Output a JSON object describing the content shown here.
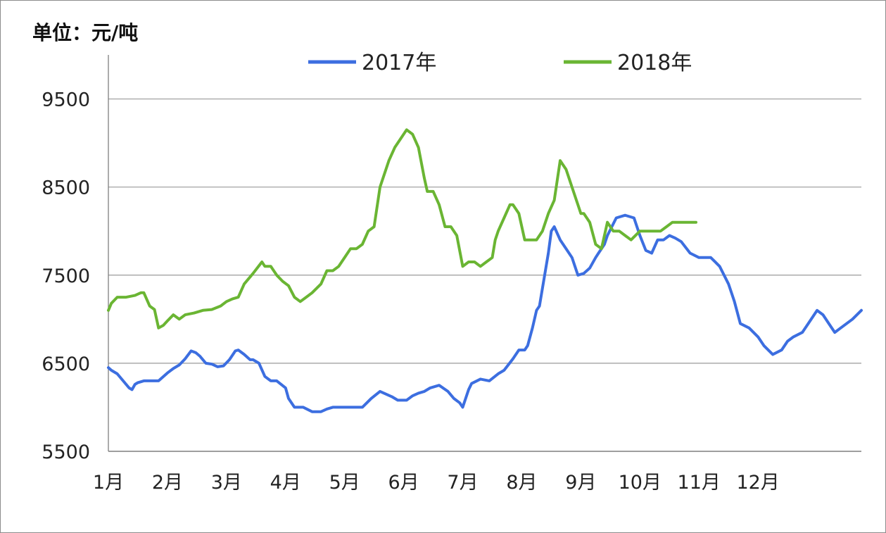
{
  "unit_label": "单位：元/吨",
  "chart_data": {
    "type": "line",
    "ylim": [
      5500,
      10000
    ],
    "yticks": [
      5500,
      6500,
      7500,
      8500,
      9500
    ],
    "xlim": [
      0,
      12.75
    ],
    "xtick_labels": [
      "1月",
      "2月",
      "3月",
      "4月",
      "5月",
      "6月",
      "7月",
      "8月",
      "9月",
      "10月",
      "11月",
      "12月"
    ],
    "grid": "horizontal",
    "legend_position": "top",
    "series": [
      {
        "name": "2017年",
        "color": "#3c6ee0",
        "x": [
          0.0,
          0.05,
          0.15,
          0.25,
          0.35,
          0.4,
          0.45,
          0.5,
          0.6,
          0.75,
          0.85,
          1.0,
          1.1,
          1.2,
          1.3,
          1.4,
          1.48,
          1.55,
          1.65,
          1.75,
          1.85,
          1.95,
          2.05,
          2.15,
          2.2,
          2.3,
          2.4,
          2.45,
          2.55,
          2.65,
          2.75,
          2.85,
          3.0,
          3.05,
          3.15,
          3.3,
          3.45,
          3.6,
          3.7,
          3.8,
          3.9,
          4.0,
          4.15,
          4.3,
          4.45,
          4.6,
          4.8,
          4.9,
          5.05,
          5.15,
          5.25,
          5.35,
          5.45,
          5.6,
          5.75,
          5.85,
          5.95,
          6.0,
          6.1,
          6.15,
          6.3,
          6.45,
          6.6,
          6.7,
          6.85,
          6.95,
          7.05,
          7.1,
          7.18,
          7.25,
          7.3,
          7.35,
          7.4,
          7.45,
          7.5,
          7.55,
          7.65,
          7.75,
          7.85,
          7.95,
          8.05,
          8.15,
          8.25,
          8.3,
          8.4,
          8.45,
          8.6,
          8.75,
          8.9,
          9.0,
          9.1,
          9.2,
          9.3,
          9.4,
          9.5,
          9.6,
          9.7,
          9.85,
          10.0,
          10.1,
          10.2,
          10.35,
          10.5,
          10.6,
          10.7,
          10.85,
          11.0,
          11.1,
          11.25,
          11.4,
          11.5,
          11.6,
          11.75,
          11.85,
          12.0,
          12.1,
          12.2,
          12.3,
          12.4,
          12.6,
          12.75
        ],
        "values": [
          6450,
          6420,
          6380,
          6300,
          6220,
          6200,
          6260,
          6280,
          6300,
          6300,
          6300,
          6390,
          6440,
          6480,
          6550,
          6640,
          6620,
          6580,
          6500,
          6490,
          6460,
          6470,
          6540,
          6640,
          6650,
          6600,
          6540,
          6540,
          6500,
          6350,
          6300,
          6300,
          6220,
          6100,
          6000,
          6000,
          5950,
          5950,
          5980,
          6000,
          6000,
          6000,
          6000,
          6000,
          6100,
          6180,
          6120,
          6080,
          6080,
          6130,
          6160,
          6180,
          6220,
          6250,
          6180,
          6100,
          6050,
          6000,
          6200,
          6270,
          6320,
          6300,
          6380,
          6420,
          6550,
          6650,
          6650,
          6700,
          6900,
          7100,
          7150,
          7350,
          7550,
          7750,
          8000,
          8050,
          7900,
          7800,
          7700,
          7500,
          7520,
          7580,
          7700,
          7750,
          7850,
          7950,
          8150,
          8180,
          8150,
          7950,
          7780,
          7750,
          7900,
          7900,
          7950,
          7920,
          7880,
          7750,
          7700,
          7700,
          7700,
          7600,
          7400,
          7200,
          6950,
          6900,
          6800,
          6700,
          6600,
          6650,
          6750,
          6800,
          6850,
          6950,
          7100,
          7050,
          6950,
          6850,
          6900,
          7000,
          7100
        ]
      },
      {
        "name": "2018年",
        "color": "#6ab533",
        "x": [
          0.0,
          0.05,
          0.15,
          0.3,
          0.45,
          0.55,
          0.6,
          0.7,
          0.78,
          0.85,
          0.93,
          1.0,
          1.1,
          1.2,
          1.3,
          1.45,
          1.6,
          1.75,
          1.9,
          2.0,
          2.1,
          2.2,
          2.3,
          2.45,
          2.6,
          2.65,
          2.75,
          2.85,
          2.95,
          3.05,
          3.15,
          3.25,
          3.35,
          3.45,
          3.6,
          3.7,
          3.8,
          3.9,
          4.0,
          4.1,
          4.2,
          4.3,
          4.4,
          4.5,
          4.6,
          4.75,
          4.85,
          4.95,
          5.05,
          5.15,
          5.25,
          5.35,
          5.4,
          5.5,
          5.6,
          5.7,
          5.75,
          5.8,
          5.9,
          6.0,
          6.1,
          6.2,
          6.3,
          6.4,
          6.5,
          6.55,
          6.6,
          6.7,
          6.8,
          6.85,
          6.95,
          7.05,
          7.15,
          7.25,
          7.35,
          7.45,
          7.55,
          7.65,
          7.75,
          7.85,
          7.95,
          8.0,
          8.05,
          8.15,
          8.25,
          8.35,
          8.45,
          8.55,
          8.65,
          8.75,
          8.85,
          9.0,
          9.05,
          9.15,
          9.25,
          9.35,
          9.45,
          9.55,
          9.65,
          9.75,
          9.85,
          9.95
        ],
        "values": [
          7100,
          7180,
          7250,
          7250,
          7270,
          7300,
          7300,
          7150,
          7110,
          6900,
          6930,
          6980,
          7050,
          7000,
          7050,
          7070,
          7100,
          7110,
          7150,
          7200,
          7230,
          7250,
          7400,
          7520,
          7650,
          7600,
          7600,
          7500,
          7430,
          7380,
          7250,
          7200,
          7250,
          7300,
          7400,
          7550,
          7550,
          7600,
          7700,
          7800,
          7800,
          7850,
          8000,
          8050,
          8500,
          8800,
          8950,
          9050,
          9150,
          9100,
          8950,
          8600,
          8450,
          8450,
          8300,
          8050,
          8050,
          8050,
          7950,
          7600,
          7650,
          7650,
          7600,
          7650,
          7700,
          7900,
          8000,
          8150,
          8300,
          8300,
          8200,
          7900,
          7900,
          7900,
          8000,
          8200,
          8350,
          8800,
          8700,
          8500,
          8300,
          8200,
          8200,
          8100,
          7850,
          7800,
          8100,
          8000,
          8000,
          7950,
          7900,
          8000,
          8000,
          8000,
          8000,
          8000,
          8050,
          8100,
          8100,
          8100,
          8100,
          8100
        ]
      }
    ]
  }
}
